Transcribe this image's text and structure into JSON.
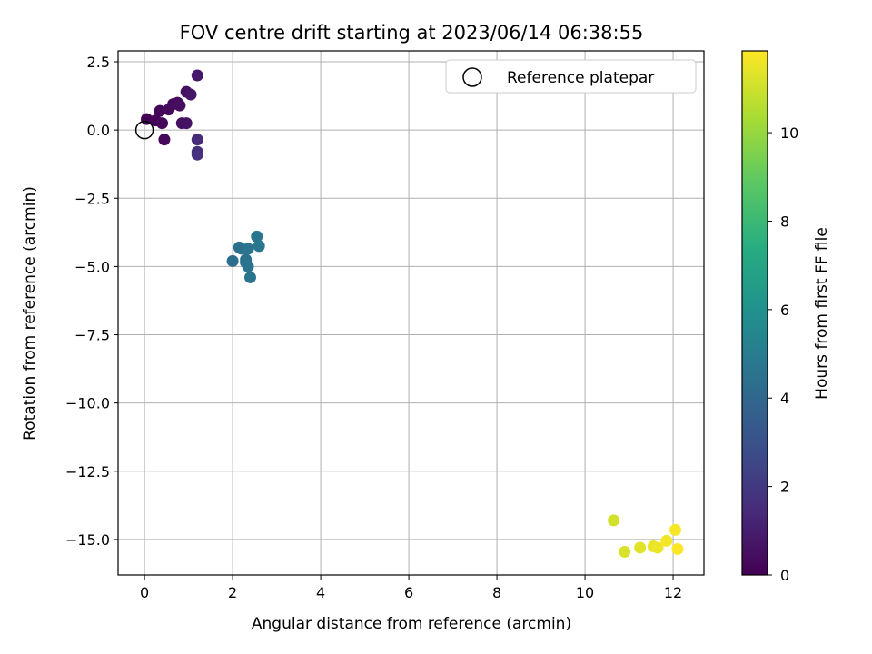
{
  "chart_data": {
    "type": "scatter",
    "title": "FOV centre drift starting at 2023/06/14 06:38:55",
    "xlabel": "Angular distance from reference (arcmin)",
    "ylabel": "Rotation from reference (arcmin)",
    "xlim": [
      -0.6,
      12.7
    ],
    "ylim": [
      -16.3,
      2.9
    ],
    "xticks": [
      0,
      2,
      4,
      6,
      8,
      10,
      12
    ],
    "xtick_labels": [
      "0",
      "2",
      "4",
      "6",
      "8",
      "10",
      "12"
    ],
    "yticks": [
      2.5,
      0.0,
      -2.5,
      -5.0,
      -7.5,
      -10.0,
      -12.5,
      -15.0
    ],
    "ytick_labels": [
      "2.5",
      "0.0",
      "−2.5",
      "−5.0",
      "−7.5",
      "−10.0",
      "−12.5",
      "−15.0"
    ],
    "grid": true,
    "legend": {
      "placement": "top-right",
      "entries": [
        "Reference platepar"
      ]
    },
    "reference_point": {
      "x": 0,
      "y": 0
    },
    "colorbar": {
      "label": "Hours from first FF file",
      "colormap": "viridis",
      "range": [
        0,
        11.85
      ],
      "ticks": [
        0,
        2,
        4,
        6,
        8,
        10
      ],
      "tick_labels": [
        "0",
        "2",
        "4",
        "6",
        "8",
        "10"
      ],
      "colors": [
        "#440154",
        "#472c7a",
        "#3b518b",
        "#2c718e",
        "#21908d",
        "#27ad81",
        "#5cc863",
        "#aadc32",
        "#fde725"
      ]
    },
    "points": [
      {
        "x": 0.05,
        "y": 0.4,
        "t": 0.0
      },
      {
        "x": 0.25,
        "y": 0.35,
        "t": 0.1
      },
      {
        "x": 0.35,
        "y": 0.7,
        "t": 0.15
      },
      {
        "x": 0.4,
        "y": 0.25,
        "t": 0.2
      },
      {
        "x": 0.45,
        "y": -0.35,
        "t": 0.25
      },
      {
        "x": 0.55,
        "y": 0.75,
        "t": 0.3
      },
      {
        "x": 0.65,
        "y": 0.95,
        "t": 0.35
      },
      {
        "x": 0.75,
        "y": 1.0,
        "t": 0.4
      },
      {
        "x": 0.8,
        "y": 0.9,
        "t": 0.45
      },
      {
        "x": 0.85,
        "y": 0.25,
        "t": 0.5
      },
      {
        "x": 0.95,
        "y": 0.25,
        "t": 0.55
      },
      {
        "x": 0.95,
        "y": 1.4,
        "t": 0.6
      },
      {
        "x": 1.05,
        "y": 1.3,
        "t": 0.7
      },
      {
        "x": 1.2,
        "y": 2.0,
        "t": 0.8
      },
      {
        "x": 1.2,
        "y": -0.35,
        "t": 1.5
      },
      {
        "x": 1.2,
        "y": -0.8,
        "t": 1.6
      },
      {
        "x": 1.2,
        "y": -0.9,
        "t": 1.7
      },
      {
        "x": 2.0,
        "y": -4.8,
        "t": 4.3
      },
      {
        "x": 2.15,
        "y": -4.3,
        "t": 4.35
      },
      {
        "x": 2.2,
        "y": -4.35,
        "t": 4.4
      },
      {
        "x": 2.3,
        "y": -4.75,
        "t": 4.45
      },
      {
        "x": 2.3,
        "y": -4.85,
        "t": 4.5
      },
      {
        "x": 2.35,
        "y": -5.0,
        "t": 4.55
      },
      {
        "x": 2.35,
        "y": -4.35,
        "t": 4.6
      },
      {
        "x": 2.4,
        "y": -5.4,
        "t": 4.6
      },
      {
        "x": 2.55,
        "y": -3.9,
        "t": 4.65
      },
      {
        "x": 2.6,
        "y": -4.25,
        "t": 4.7
      },
      {
        "x": 10.65,
        "y": -14.3,
        "t": 11.1
      },
      {
        "x": 10.9,
        "y": -15.45,
        "t": 11.2
      },
      {
        "x": 11.25,
        "y": -15.3,
        "t": 11.35
      },
      {
        "x": 11.55,
        "y": -15.25,
        "t": 11.45
      },
      {
        "x": 11.65,
        "y": -15.3,
        "t": 11.55
      },
      {
        "x": 11.85,
        "y": -15.05,
        "t": 11.65
      },
      {
        "x": 12.05,
        "y": -14.65,
        "t": 11.75
      },
      {
        "x": 12.1,
        "y": -15.35,
        "t": 11.85
      }
    ]
  }
}
